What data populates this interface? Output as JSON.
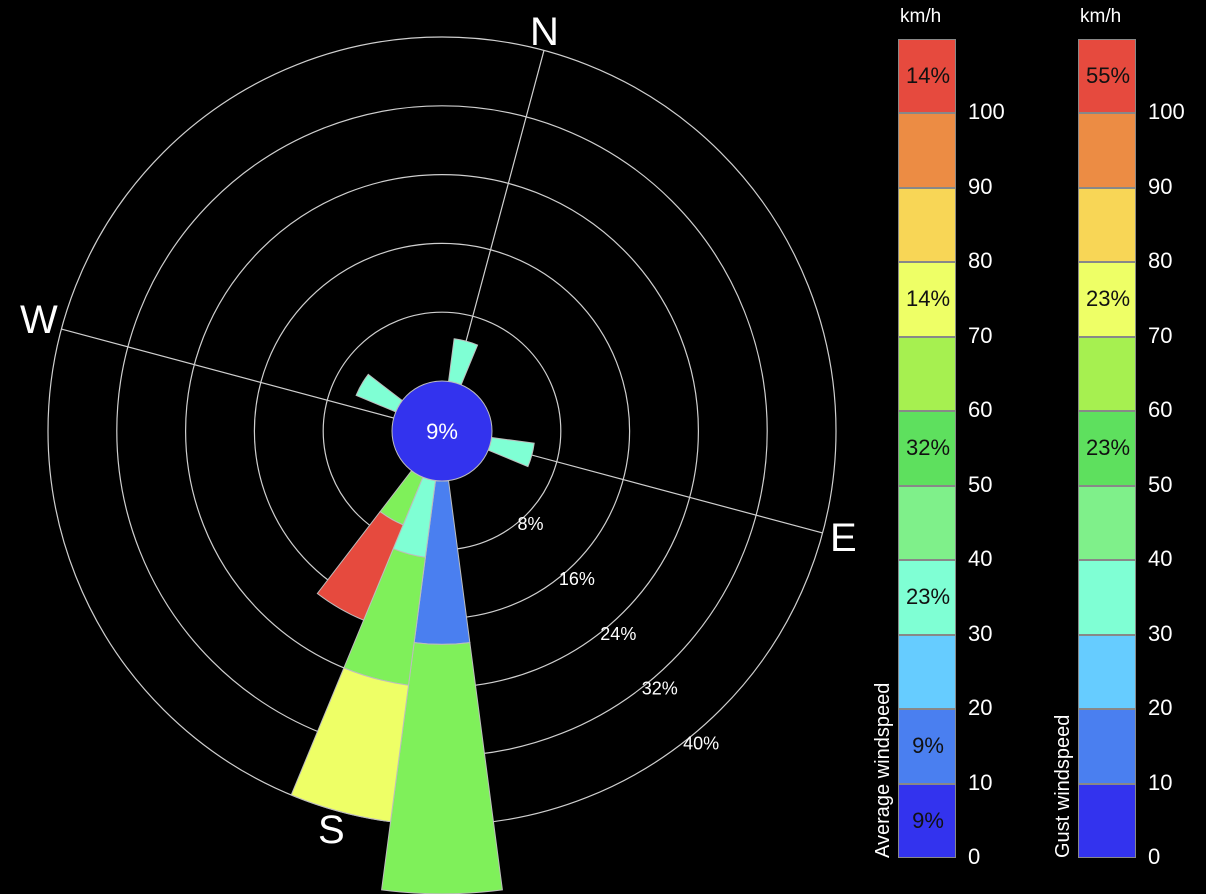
{
  "chart_data": {
    "type": "wind-rose",
    "center_calm_label": "9%",
    "ring_labels": [
      "8%",
      "16%",
      "24%",
      "32%",
      "40%"
    ],
    "ring_values": [
      8,
      16,
      24,
      32,
      40
    ],
    "cardinals": {
      "n": "N",
      "e": "E",
      "s": "S",
      "w": "W"
    },
    "rotation_deg": 15,
    "sector_width_deg": 15,
    "wedges": [
      {
        "direction_deg": 0,
        "segments": [
          {
            "speed_bin": "30-40",
            "percent": 5
          }
        ]
      },
      {
        "direction_deg": 90,
        "segments": [
          {
            "speed_bin": "30-40",
            "percent": 5
          }
        ]
      },
      {
        "direction_deg": 285,
        "segments": [
          {
            "speed_bin": "30-40",
            "percent": 5
          }
        ]
      },
      {
        "direction_deg": 165,
        "segments": [
          {
            "speed_bin": "10-20",
            "percent": 19
          },
          {
            "speed_bin": "50-60",
            "percent": 29
          }
        ]
      },
      {
        "direction_deg": 180,
        "segments": [
          {
            "speed_bin": "30-40",
            "percent": 9
          },
          {
            "speed_bin": "50-60",
            "percent": 15
          },
          {
            "speed_bin": "70-80",
            "percent": 16
          }
        ]
      },
      {
        "direction_deg": 195,
        "segments": [
          {
            "speed_bin": "50-60",
            "percent": 6
          },
          {
            "speed_bin": "90-100+",
            "percent": 12
          }
        ]
      }
    ],
    "scales": [
      {
        "title": "Average windspeed",
        "unit": "km/h",
        "bins": [
          {
            "range": "0-10",
            "percent_label": "9%"
          },
          {
            "range": "10-20",
            "percent_label": "9%"
          },
          {
            "range": "20-30",
            "percent_label": ""
          },
          {
            "range": "30-40",
            "percent_label": "23%"
          },
          {
            "range": "40-50",
            "percent_label": ""
          },
          {
            "range": "50-60",
            "percent_label": "32%"
          },
          {
            "range": "60-70",
            "percent_label": ""
          },
          {
            "range": "70-80",
            "percent_label": "14%"
          },
          {
            "range": "80-90",
            "percent_label": ""
          },
          {
            "range": "90-100",
            "percent_label": ""
          },
          {
            "range": "100+",
            "percent_label": "14%"
          }
        ]
      },
      {
        "title": "Gust windspeed",
        "unit": "km/h",
        "bins": [
          {
            "range": "0-10",
            "percent_label": ""
          },
          {
            "range": "10-20",
            "percent_label": ""
          },
          {
            "range": "20-30",
            "percent_label": ""
          },
          {
            "range": "30-40",
            "percent_label": ""
          },
          {
            "range": "40-50",
            "percent_label": ""
          },
          {
            "range": "50-60",
            "percent_label": "23%"
          },
          {
            "range": "60-70",
            "percent_label": ""
          },
          {
            "range": "70-80",
            "percent_label": "23%"
          },
          {
            "range": "80-90",
            "percent_label": ""
          },
          {
            "range": "90-100",
            "percent_label": ""
          },
          {
            "range": "100+",
            "percent_label": "55%"
          }
        ]
      }
    ],
    "scale_ticks": [
      "0",
      "10",
      "20",
      "30",
      "40",
      "50",
      "60",
      "70",
      "80",
      "90",
      "100"
    ],
    "bin_colors": [
      "#3333ee",
      "#4a7ff0",
      "#66ccff",
      "#7fffd4",
      "#7ff08a",
      "#5ee05e",
      "#a6f050",
      "#eeff66",
      "#f8d656",
      "#ec8c44",
      "#e64a3e"
    ],
    "speed_bin_colors": {
      "10-20": "#4a7ff0",
      "30-40": "#7fffd4",
      "50-60": "#7ff05a",
      "70-80": "#eeff66",
      "90-100+": "#e64a3e"
    },
    "calm_color": "#3333ee"
  }
}
